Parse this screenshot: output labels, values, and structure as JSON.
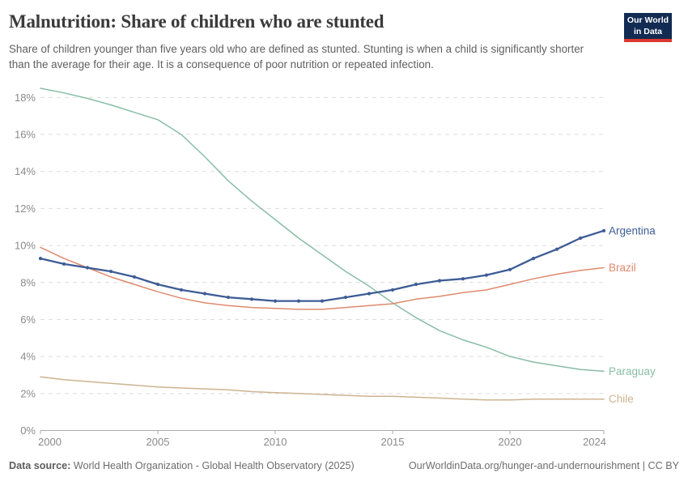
{
  "header": {
    "title": "Malnutrition: Share of children who are stunted",
    "subtitle": "Share of children younger than five years old who are defined as stunted. Stunting is when a child is significantly shorter than the average for their age. It is a consequence of poor nutrition or repeated infection.",
    "logo": {
      "line1": "Our World",
      "line2": "in Data",
      "bg_color": "#122b52",
      "stripe_color": "#dc3932"
    }
  },
  "chart_data": {
    "type": "line",
    "title": "Malnutrition: Share of children who are stunted",
    "x": [
      2000,
      2001,
      2002,
      2003,
      2004,
      2005,
      2006,
      2007,
      2008,
      2009,
      2010,
      2011,
      2012,
      2013,
      2014,
      2015,
      2016,
      2017,
      2018,
      2019,
      2020,
      2021,
      2022,
      2023,
      2024
    ],
    "series": [
      {
        "name": "Argentina",
        "color": "#3d5c95",
        "markers": true,
        "values": [
          9.3,
          9.0,
          8.8,
          8.6,
          8.3,
          7.9,
          7.6,
          7.4,
          7.2,
          7.1,
          7.0,
          7.0,
          7.0,
          7.2,
          7.4,
          7.6,
          7.9,
          8.1,
          8.2,
          8.4,
          8.7,
          9.3,
          9.8,
          10.4,
          10.8
        ]
      },
      {
        "name": "Brazil",
        "color": "#df8a6e",
        "markers": false,
        "values": [
          9.9,
          9.3,
          8.8,
          8.3,
          7.9,
          7.5,
          7.15,
          6.9,
          6.75,
          6.65,
          6.6,
          6.55,
          6.55,
          6.65,
          6.75,
          6.85,
          7.1,
          7.25,
          7.45,
          7.6,
          7.9,
          8.2,
          8.45,
          8.65,
          8.8
        ]
      },
      {
        "name": "Paraguay",
        "color": "#89bda6",
        "markers": false,
        "values": [
          18.5,
          18.25,
          17.95,
          17.6,
          17.2,
          16.8,
          16.0,
          14.8,
          13.5,
          12.4,
          11.4,
          10.4,
          9.5,
          8.6,
          7.8,
          6.9,
          6.1,
          5.4,
          4.9,
          4.5,
          4.0,
          3.7,
          3.5,
          3.3,
          3.2
        ]
      },
      {
        "name": "Chile",
        "color": "#cdb390",
        "markers": false,
        "values": [
          2.9,
          2.75,
          2.65,
          2.55,
          2.45,
          2.35,
          2.3,
          2.25,
          2.2,
          2.1,
          2.05,
          2.0,
          1.95,
          1.9,
          1.85,
          1.85,
          1.8,
          1.75,
          1.7,
          1.65,
          1.65,
          1.7,
          1.7,
          1.7,
          1.7
        ]
      }
    ],
    "xlabel": "",
    "ylabel": "",
    "xlim": [
      2000,
      2024
    ],
    "ylim": [
      0,
      18.6
    ],
    "x_ticks": [
      2000,
      2005,
      2010,
      2015,
      2020,
      2024
    ],
    "y_ticks": [
      0,
      2,
      4,
      6,
      8,
      10,
      12,
      14,
      16,
      18
    ],
    "y_tick_suffix": "%",
    "grid": "horizontal-dashed",
    "legend_position": "end-of-line labels"
  },
  "footer": {
    "datasource_label": "Data source:",
    "datasource": "World Health Organization - Global Health Observatory (2025)",
    "link": "OurWorldinData.org/hunger-and-undernourishment | CC BY"
  }
}
